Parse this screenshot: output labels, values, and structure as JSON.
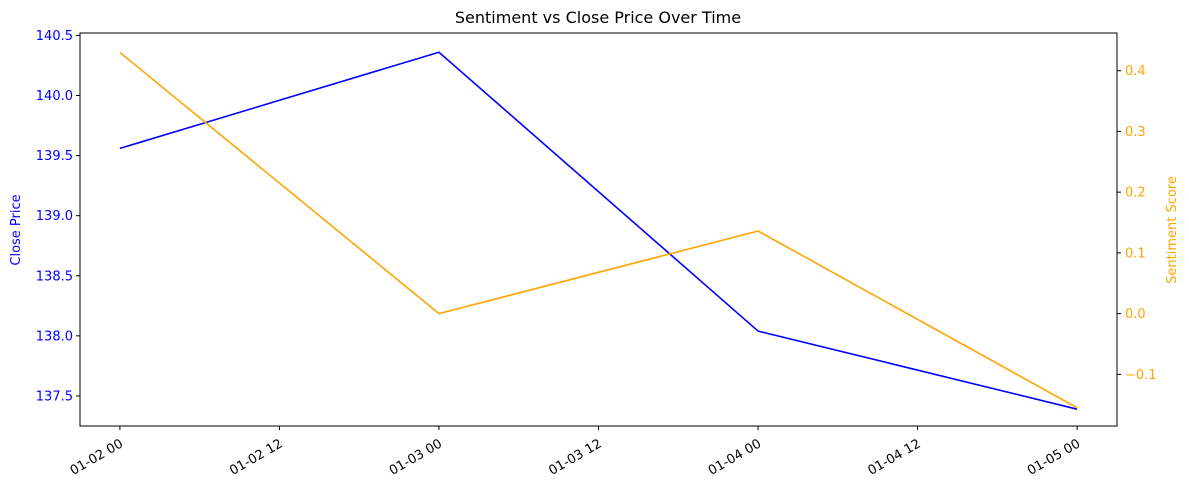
{
  "chart_data": {
    "type": "line",
    "title": "Sentiment vs Close Price Over Time",
    "xlabel": "",
    "x": [
      "01-02 00",
      "01-03 00",
      "01-04 00",
      "01-05 00"
    ],
    "x_tick_labels": [
      "01-02 00",
      "01-02 12",
      "01-03 00",
      "01-03 12",
      "01-04 00",
      "01-04 12",
      "01-05 00"
    ],
    "xlim": [
      "01-01 21:00",
      "01-05 03:00"
    ],
    "series": [
      {
        "name": "Close Price",
        "axis": "left",
        "color": "#0000ff",
        "values": [
          139.56,
          140.36,
          138.04,
          137.39
        ]
      },
      {
        "name": "Sentiment Score",
        "axis": "right",
        "color": "#ffa500",
        "values": [
          0.43,
          0.0,
          0.136,
          -0.155
        ]
      }
    ],
    "y_left": {
      "label": "Close Price",
      "color": "#0000ff",
      "ylim": [
        137.25,
        140.52
      ],
      "ticks": [
        "137.5",
        "138.0",
        "138.5",
        "139.0",
        "139.5",
        "140.0",
        "140.5"
      ]
    },
    "y_right": {
      "label": "Sentiment Score",
      "color": "#ffa500",
      "ylim": [
        -0.185,
        0.462
      ],
      "ticks": [
        "−0.1",
        "0.0",
        "0.1",
        "0.2",
        "0.3",
        "0.4"
      ]
    },
    "grid": false,
    "legend": "none"
  }
}
